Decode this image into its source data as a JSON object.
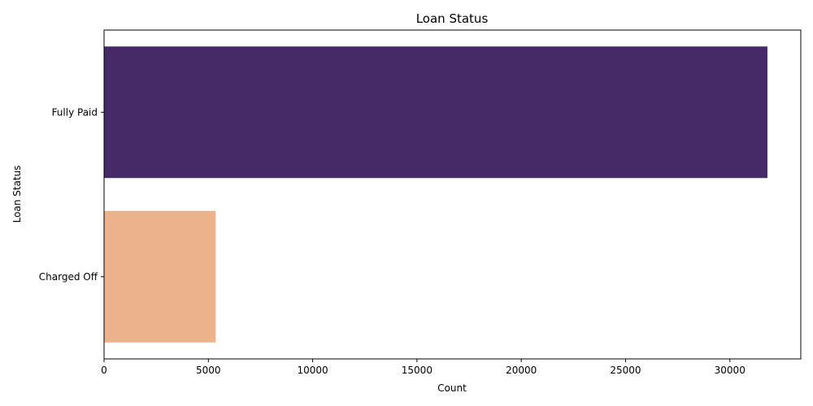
{
  "chart_data": {
    "type": "bar",
    "orientation": "horizontal",
    "title": "Loan Status",
    "xlabel": "Count",
    "ylabel": "Loan Status",
    "categories": [
      "Fully Paid",
      "Charged Off"
    ],
    "values": [
      31800,
      5350
    ],
    "colors": [
      "#452a67",
      "#ebb28b"
    ],
    "xlim": [
      0,
      33400
    ],
    "xticks": [
      0,
      5000,
      10000,
      15000,
      20000,
      25000,
      30000
    ],
    "grid": false
  }
}
